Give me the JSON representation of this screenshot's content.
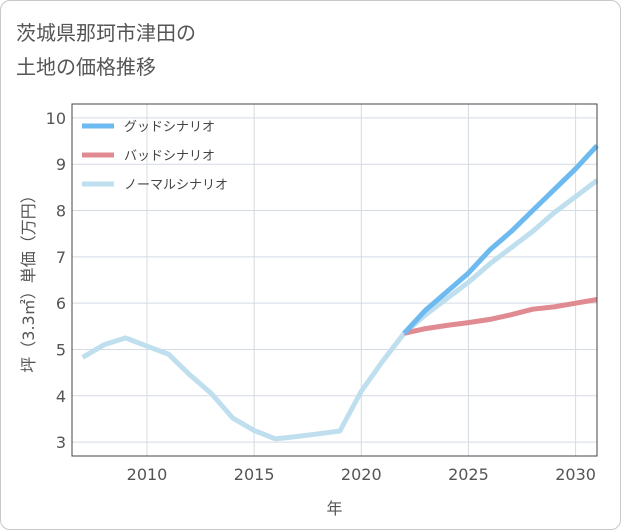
{
  "title": {
    "line1": "茨城県那珂市津田の",
    "line2": "土地の価格推移"
  },
  "chart_data": {
    "type": "line",
    "xlabel": "年",
    "ylabel": "坪（3.3㎡）単価（万円）",
    "xlim": [
      2006.5,
      2031
    ],
    "ylim": [
      2.7,
      10.3
    ],
    "x_ticks": [
      2010,
      2015,
      2020,
      2025,
      2030
    ],
    "y_ticks": [
      3,
      4,
      5,
      6,
      7,
      8,
      9,
      10
    ],
    "grid": true,
    "legend_position": "top-left",
    "series": [
      {
        "name": "グッドシナリオ",
        "color": "#6cbaf0",
        "x": [
          2022,
          2023,
          2024,
          2025,
          2026,
          2027,
          2028,
          2029,
          2030,
          2031
        ],
        "y": [
          5.35,
          5.85,
          6.25,
          6.65,
          7.15,
          7.55,
          8.0,
          8.45,
          8.9,
          9.4
        ]
      },
      {
        "name": "バッドシナリオ",
        "color": "#e08a92",
        "x": [
          2022,
          2023,
          2024,
          2025,
          2026,
          2027,
          2028,
          2029,
          2030,
          2031
        ],
        "y": [
          5.35,
          5.45,
          5.52,
          5.58,
          5.65,
          5.75,
          5.87,
          5.92,
          6.0,
          6.08
        ]
      },
      {
        "name": "ノーマルシナリオ",
        "color": "#bfdfee",
        "x": [
          2007,
          2008,
          2009,
          2010,
          2011,
          2012,
          2013,
          2014,
          2015,
          2016,
          2017,
          2018,
          2019,
          2020,
          2021,
          2022,
          2023,
          2024,
          2025,
          2026,
          2027,
          2028,
          2029,
          2030,
          2031
        ],
        "y": [
          4.83,
          5.1,
          5.25,
          5.07,
          4.9,
          4.45,
          4.05,
          3.52,
          3.25,
          3.07,
          3.12,
          3.18,
          3.24,
          4.1,
          4.75,
          5.35,
          5.75,
          6.1,
          6.45,
          6.85,
          7.2,
          7.55,
          7.95,
          8.3,
          8.65
        ]
      }
    ]
  }
}
